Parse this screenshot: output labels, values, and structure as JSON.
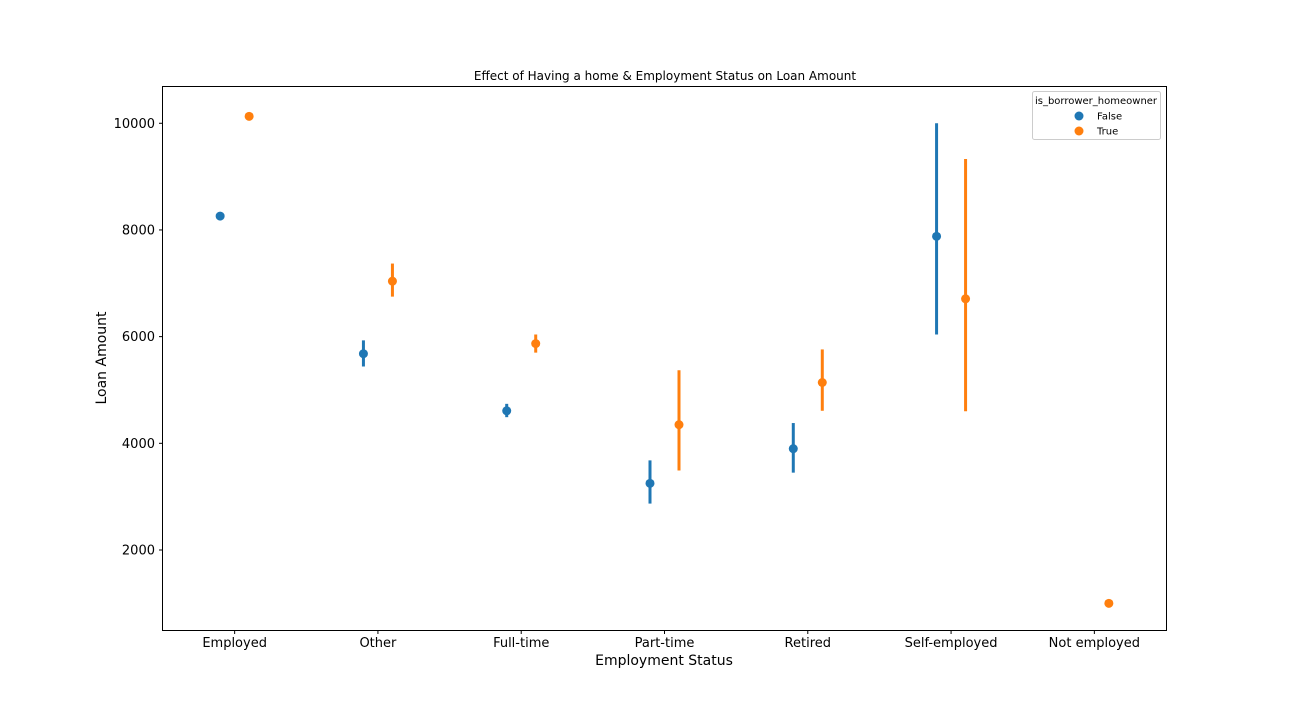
{
  "chart_data": {
    "type": "scatter",
    "title": "Effect of Having a home & Employment Status on Loan Amount",
    "xlabel": "Employment Status",
    "ylabel": "Loan Amount",
    "categories": [
      "Employed",
      "Other",
      "Full-time",
      "Part-time",
      "Retired",
      "Self-employed",
      "Not employed"
    ],
    "yticks": [
      2000,
      4000,
      6000,
      8000,
      10000
    ],
    "ylim": [
      500,
      10680
    ],
    "grid": false,
    "legend": {
      "title": "is_borrower_homeowner",
      "placement": "top-right"
    },
    "series": [
      {
        "name": "False",
        "color": "#1f77b4",
        "values": [
          8260,
          5680,
          4610,
          3250,
          3900,
          7880,
          null
        ],
        "ci_low": [
          8210,
          5440,
          4490,
          2870,
          3450,
          6040,
          null
        ],
        "ci_high": [
          8330,
          5930,
          4740,
          3680,
          4380,
          10000,
          null
        ]
      },
      {
        "name": "True",
        "color": "#ff7f0e",
        "values": [
          10130,
          7040,
          5870,
          4350,
          5140,
          6710,
          1000
        ],
        "ci_low": [
          10070,
          6750,
          5700,
          3490,
          4610,
          4600,
          980
        ],
        "ci_high": [
          10200,
          7370,
          6040,
          5370,
          5760,
          9330,
          1020
        ]
      }
    ]
  }
}
